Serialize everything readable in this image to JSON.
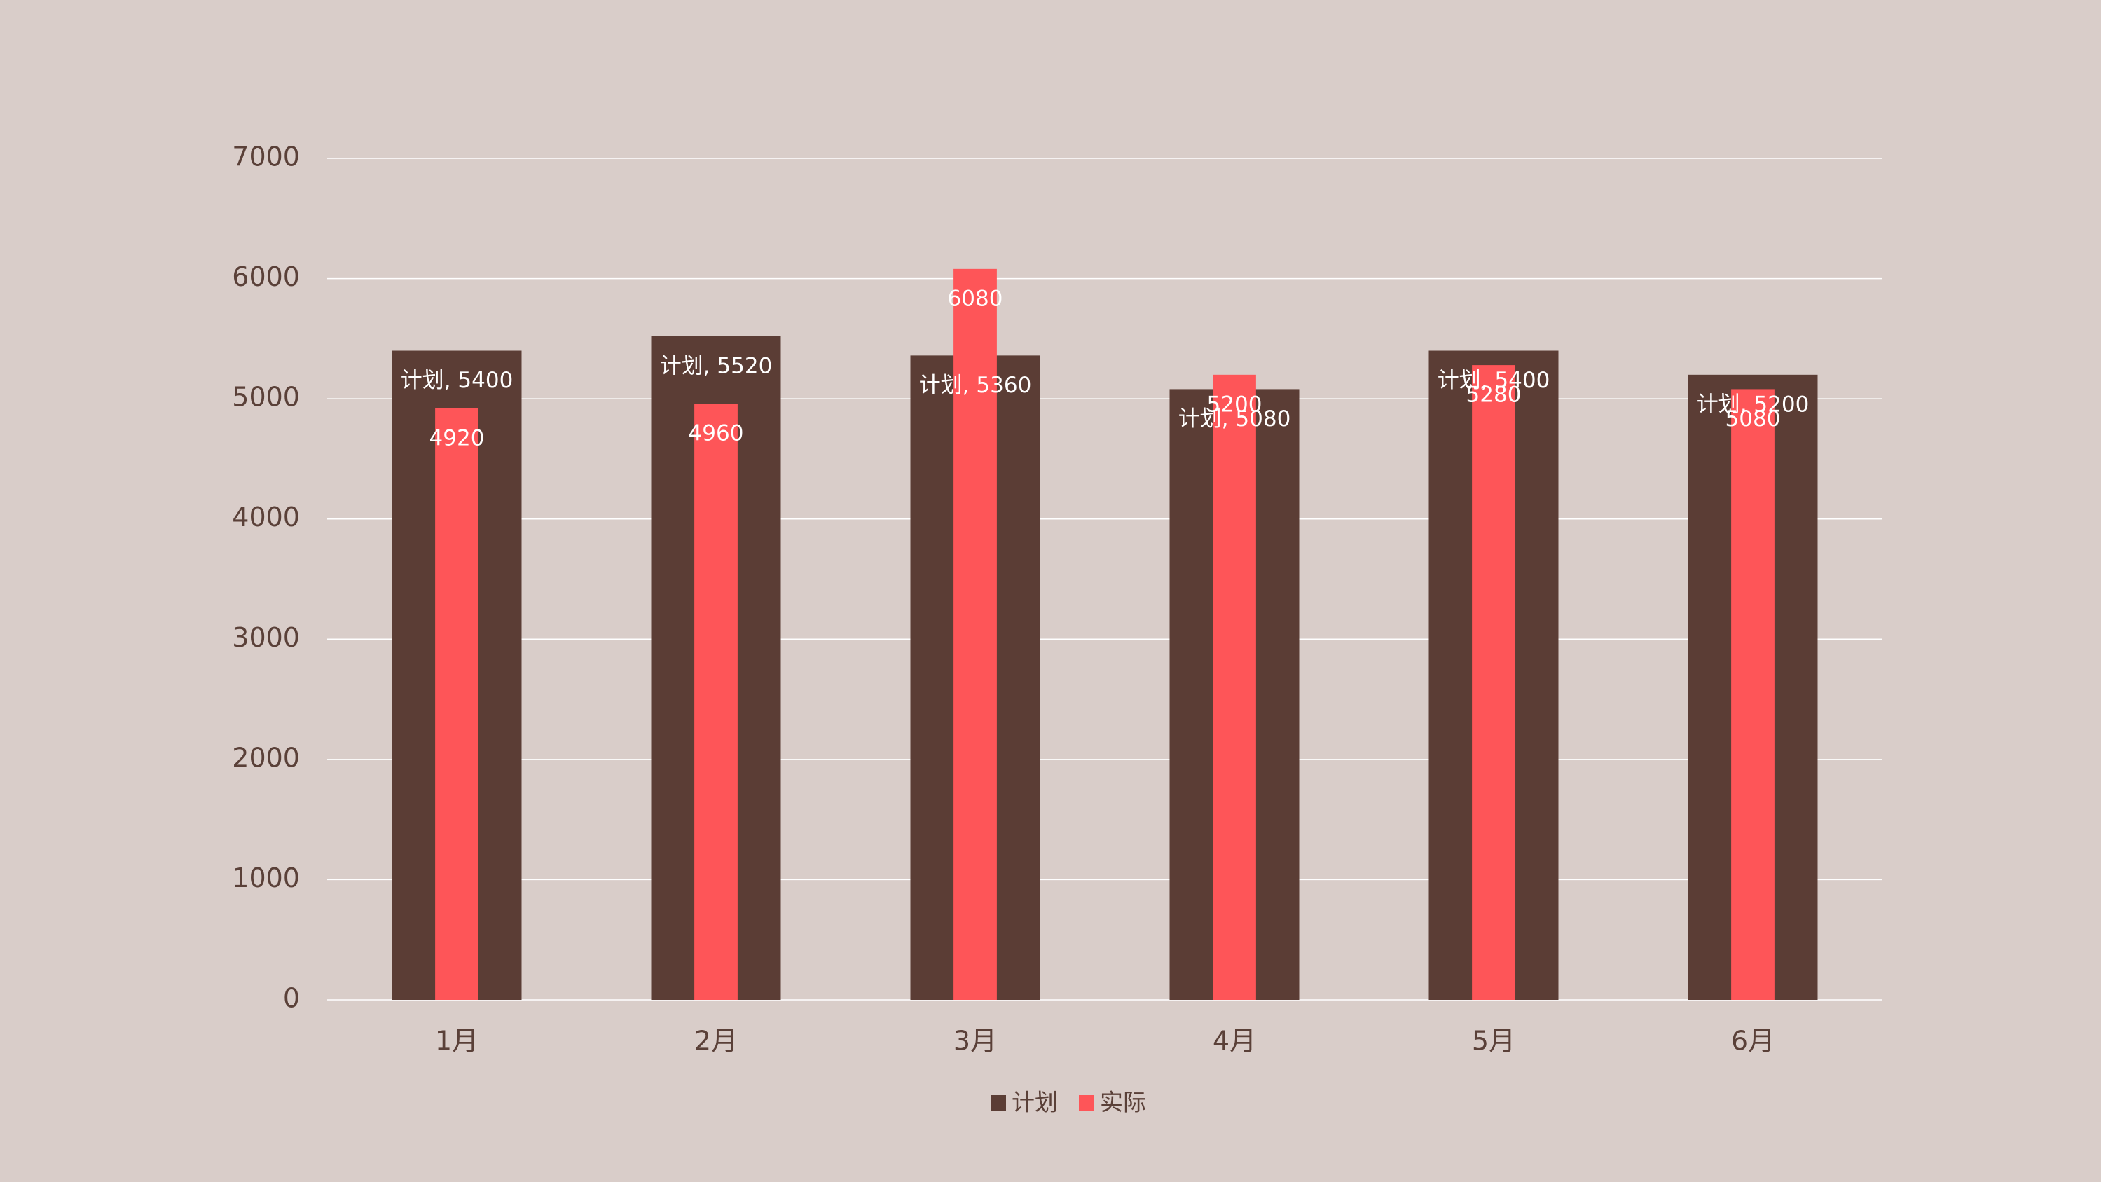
{
  "chart_data": {
    "type": "bar",
    "categories": [
      "1月",
      "2月",
      "3月",
      "4月",
      "5月",
      "6月"
    ],
    "series": [
      {
        "name": "计划",
        "color": "#5b3d35",
        "values": [
          5400,
          5520,
          5360,
          5080,
          5400,
          5200
        ],
        "value_labels": [
          "计划, 5400",
          "计划, 5520",
          "计划, 5360",
          "计划, 5080",
          "计划, 5400",
          "计划, 5200"
        ]
      },
      {
        "name": "实际",
        "color": "#fe5558",
        "values": [
          4920,
          4960,
          6080,
          5200,
          5280,
          5080
        ]
      }
    ],
    "ylim": [
      0,
      7000
    ],
    "yticks": [
      0,
      1000,
      2000,
      3000,
      4000,
      5000,
      6000,
      7000
    ],
    "grid": true
  }
}
